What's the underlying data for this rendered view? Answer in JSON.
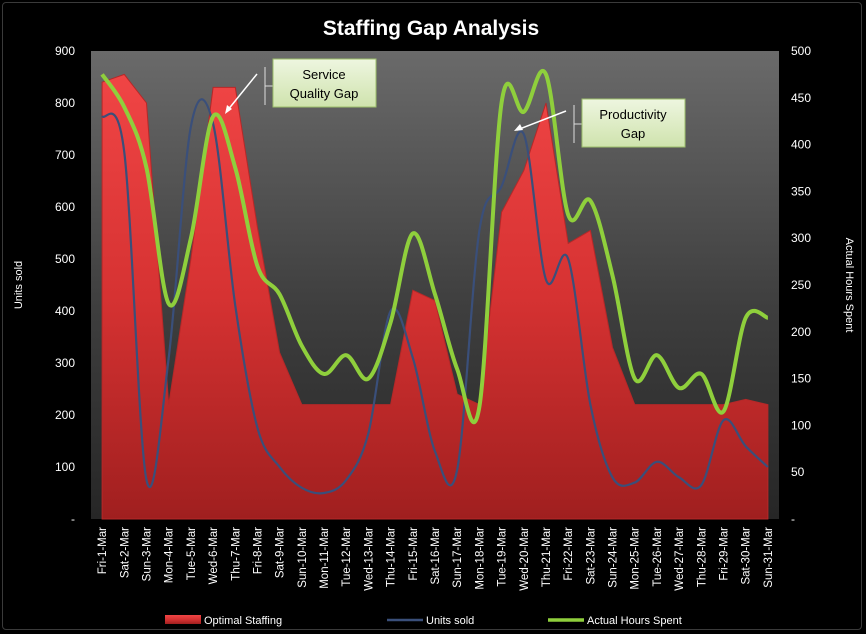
{
  "chart_data": {
    "type": "area+line",
    "title": "Staffing Gap Analysis",
    "ylabel": "Units sold",
    "y2label": "Actual Hours Spent",
    "ylim": [
      0,
      900
    ],
    "y2lim": [
      0,
      500
    ],
    "yticks": [
      "-",
      "100",
      "200",
      "300",
      "400",
      "500",
      "600",
      "700",
      "800",
      "900"
    ],
    "y2ticks": [
      "-",
      "50",
      "100",
      "150",
      "200",
      "250",
      "300",
      "350",
      "400",
      "450",
      "500"
    ],
    "categories": [
      "Fri-1-Mar",
      "Sat-2-Mar",
      "Sun-3-Mar",
      "Mon-4-Mar",
      "Tue-5-Mar",
      "Wed-6-Mar",
      "Thu-7-Mar",
      "Fri-8-Mar",
      "Sat-9-Mar",
      "Sun-10-Mar",
      "Mon-11-Mar",
      "Tue-12-Mar",
      "Wed-13-Mar",
      "Thu-14-Mar",
      "Fri-15-Mar",
      "Sat-16-Mar",
      "Sun-17-Mar",
      "Mon-18-Mar",
      "Tue-19-Mar",
      "Wed-20-Mar",
      "Thu-21-Mar",
      "Fri-22-Mar",
      "Sat-23-Mar",
      "Sun-24-Mar",
      "Mon-25-Mar",
      "Tue-26-Mar",
      "Wed-27-Mar",
      "Thu-28-Mar",
      "Fri-29-Mar",
      "Sat-30-Mar",
      "Sun-31-Mar"
    ],
    "series": [
      {
        "name": "Optimal Staffing",
        "kind": "area",
        "axis": "left",
        "color": "#e03a3a",
        "values": [
          840,
          855,
          800,
          220,
          500,
          830,
          830,
          560,
          320,
          220,
          220,
          220,
          220,
          220,
          440,
          420,
          240,
          220,
          590,
          670,
          800,
          530,
          555,
          330,
          220,
          220,
          220,
          220,
          220,
          230,
          220
        ]
      },
      {
        "name": "Units sold",
        "kind": "line",
        "axis": "left",
        "color": "#3a4f7a",
        "values": [
          775,
          705,
          75,
          310,
          755,
          760,
          410,
          175,
          100,
          60,
          50,
          75,
          165,
          400,
          310,
          130,
          95,
          555,
          640,
          740,
          460,
          500,
          220,
          80,
          70,
          110,
          80,
          65,
          190,
          140,
          100
        ]
      },
      {
        "name": "Actual Hours Spent",
        "kind": "line",
        "axis": "right",
        "color": "#8fcf3c",
        "values": [
          475,
          440,
          375,
          230,
          300,
          430,
          375,
          270,
          240,
          185,
          155,
          175,
          150,
          210,
          305,
          240,
          160,
          120,
          445,
          435,
          475,
          325,
          340,
          260,
          150,
          175,
          140,
          155,
          115,
          215,
          215
        ]
      }
    ],
    "annotations": [
      {
        "text_lines": [
          "Service",
          "Quality Gap"
        ],
        "target": "Wed-6-Mar"
      },
      {
        "text_lines": [
          "Productivity",
          "Gap"
        ],
        "target": "Wed-20-Mar"
      }
    ],
    "grid": false,
    "legend": "bottom"
  }
}
